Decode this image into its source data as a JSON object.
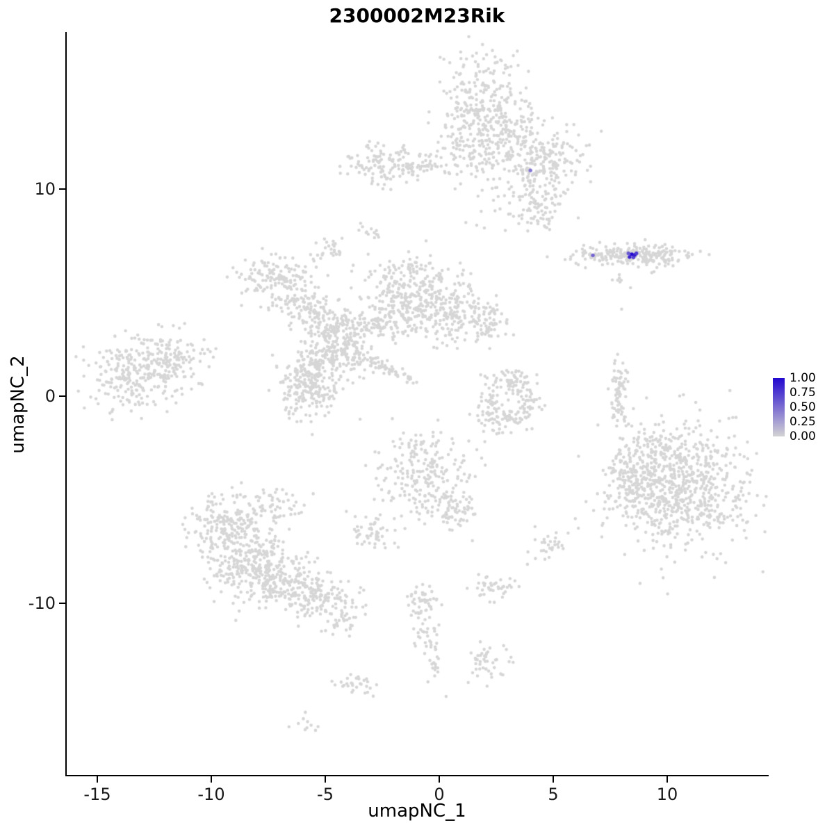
{
  "title": "2300002M23Rik",
  "axes": {
    "x_label": "umapNC_1",
    "y_label": "umapNC_2",
    "x_tick_labels": [
      "-15",
      "-10",
      "-5",
      "0",
      "5",
      "10"
    ],
    "y_tick_labels": [
      "10",
      "0",
      "-10"
    ]
  },
  "legend": {
    "labels": [
      "1.00",
      "0.75",
      "0.50",
      "0.25",
      "0.00"
    ],
    "values": [
      1.0,
      0.75,
      0.5,
      0.25,
      0.0
    ],
    "low_color": "#D3D3D3",
    "high_color": "#2308CF"
  },
  "chart_data": {
    "type": "scatter",
    "title": "2300002M23Rik",
    "xlabel": "umapNC_1",
    "ylabel": "umapNC_2",
    "xlim": [
      -16.4,
      14.4
    ],
    "ylim": [
      -18.3,
      17.5
    ],
    "x_ticks": [
      -15,
      -10,
      -5,
      0,
      5,
      10
    ],
    "y_ticks": [
      10,
      0,
      -10
    ],
    "grid": false,
    "legend_position": "right",
    "point_color": "#D6D6D6",
    "point_radius": 2.3,
    "seed": 42,
    "clusters": [
      {
        "name": "top-main",
        "cx": 1.9,
        "cy": 13.3,
        "sx": 1.1,
        "sy": 1.5,
        "n": 450
      },
      {
        "name": "top-right",
        "cx": 4.4,
        "cy": 11.3,
        "sx": 1.0,
        "sy": 0.9,
        "n": 220
      },
      {
        "name": "top-tail",
        "cx": 4.4,
        "cy": 9.3,
        "sx": 0.5,
        "sy": 0.8,
        "n": 70
      },
      {
        "name": "top-sparse-below",
        "cx": 3.0,
        "cy": 8.7,
        "sx": 0.7,
        "sy": 0.5,
        "n": 12
      },
      {
        "name": "topleft-blob",
        "cx": -2.2,
        "cy": 11.2,
        "sx": 0.9,
        "sy": 0.5,
        "n": 130
      },
      {
        "name": "topleft-bridge",
        "cx": -0.6,
        "cy": 11.0,
        "sx": 0.7,
        "sy": 0.15,
        "n": 25
      },
      {
        "name": "tiny-blob-a",
        "cx": -3.2,
        "cy": 8.0,
        "sx": 0.25,
        "sy": 0.2,
        "n": 12
      },
      {
        "name": "tiny-blob-b",
        "cx": -4.7,
        "cy": 7.1,
        "sx": 0.35,
        "sy": 0.25,
        "n": 25
      },
      {
        "name": "island-main",
        "cx": 8.3,
        "cy": 6.8,
        "sx": 1.2,
        "sy": 0.25,
        "n": 170
      },
      {
        "name": "island-right",
        "cx": 9.6,
        "cy": 6.7,
        "sx": 0.5,
        "sy": 0.3,
        "n": 55
      },
      {
        "name": "island-left",
        "cx": 6.8,
        "cy": 6.8,
        "sx": 0.3,
        "sy": 0.15,
        "n": 18
      },
      {
        "name": "island-below",
        "cx": 8.0,
        "cy": 5.6,
        "sx": 0.3,
        "sy": 0.3,
        "n": 6
      },
      {
        "name": "mid-left-a",
        "cx": -7.1,
        "cy": 5.7,
        "sx": 0.8,
        "sy": 0.6,
        "n": 140
      },
      {
        "name": "mid-left-b",
        "cx": -6.0,
        "cy": 4.4,
        "sx": 0.6,
        "sy": 0.5,
        "n": 100
      },
      {
        "name": "mid-left-c",
        "cx": -4.8,
        "cy": 3.4,
        "sx": 0.6,
        "sy": 0.5,
        "n": 100
      },
      {
        "name": "mid-center",
        "cx": -1.3,
        "cy": 5.0,
        "sx": 1.0,
        "sy": 0.9,
        "n": 300
      },
      {
        "name": "mid-right",
        "cx": 0.7,
        "cy": 3.9,
        "sx": 0.9,
        "sy": 0.7,
        "n": 180
      },
      {
        "name": "mid-right-edge",
        "cx": 2.2,
        "cy": 3.7,
        "sx": 0.4,
        "sy": 0.4,
        "n": 40
      },
      {
        "name": "mid-bridge",
        "cx": -2.8,
        "cy": 3.4,
        "sx": 0.8,
        "sy": 0.4,
        "n": 80
      },
      {
        "name": "mid-lower-a",
        "cx": -4.3,
        "cy": 2.2,
        "sx": 0.7,
        "sy": 0.6,
        "n": 150
      },
      {
        "name": "mid-lower-dense",
        "cx": -5.7,
        "cy": 0.7,
        "sx": 0.7,
        "sy": 0.8,
        "n": 260
      },
      {
        "name": "diag-streak",
        "cx": -2.3,
        "cy": 1.3,
        "sx": 0.9,
        "sy": 0.15,
        "rot": -24,
        "n": 60
      },
      {
        "name": "far-left-a",
        "cx": -13.5,
        "cy": 1.0,
        "sx": 1.0,
        "sy": 0.8,
        "n": 210
      },
      {
        "name": "far-left-b",
        "cx": -12.0,
        "cy": 1.7,
        "sx": 0.9,
        "sy": 0.7,
        "n": 150
      },
      {
        "name": "center-ring-top",
        "cx": 3.1,
        "cy": 0.8,
        "sx": 0.6,
        "sy": 0.3,
        "n": 60
      },
      {
        "name": "center-ring-right",
        "cx": 3.8,
        "cy": -0.3,
        "sx": 0.3,
        "sy": 0.5,
        "n": 50
      },
      {
        "name": "center-ring-bottom",
        "cx": 2.8,
        "cy": -1.2,
        "sx": 0.5,
        "sy": 0.3,
        "n": 55
      },
      {
        "name": "center-ring-left",
        "cx": 2.2,
        "cy": -0.3,
        "sx": 0.25,
        "sy": 0.4,
        "n": 30
      },
      {
        "name": "right-arc",
        "cx": 7.9,
        "cy": 0.1,
        "sx": 0.2,
        "sy": 1.0,
        "n": 70
      },
      {
        "name": "bottom-right-main",
        "cx": 10.6,
        "cy": -4.4,
        "sx": 1.5,
        "sy": 1.4,
        "n": 650
      },
      {
        "name": "bottom-right-halo",
        "cx": 10.4,
        "cy": -4.2,
        "sx": 2.1,
        "sy": 1.8,
        "n": 90
      },
      {
        "name": "bottom-right-arm",
        "cx": 8.3,
        "cy": -4.0,
        "sx": 0.5,
        "sy": 0.9,
        "n": 120
      },
      {
        "name": "bottom-right-top",
        "cx": 9.4,
        "cy": -2.4,
        "sx": 0.5,
        "sy": 0.4,
        "n": 50
      },
      {
        "name": "center-low",
        "cx": -0.6,
        "cy": -3.8,
        "sx": 1.0,
        "sy": 1.1,
        "n": 230
      },
      {
        "name": "center-low-tail",
        "cx": 0.7,
        "cy": -5.6,
        "sx": 0.4,
        "sy": 0.5,
        "n": 55
      },
      {
        "name": "small-blob-left",
        "cx": -2.9,
        "cy": -6.5,
        "sx": 0.5,
        "sy": 0.4,
        "n": 50
      },
      {
        "name": "bottom-left-a",
        "cx": -9.2,
        "cy": -6.4,
        "sx": 0.9,
        "sy": 0.8,
        "n": 200
      },
      {
        "name": "bottom-left-b",
        "cx": -8.3,
        "cy": -8.1,
        "sx": 1.0,
        "sy": 0.9,
        "n": 250
      },
      {
        "name": "bottom-left-c",
        "cx": -6.5,
        "cy": -9.1,
        "sx": 0.9,
        "sy": 0.7,
        "n": 180
      },
      {
        "name": "bottom-left-d",
        "cx": -4.9,
        "cy": -9.9,
        "sx": 0.7,
        "sy": 0.5,
        "n": 100
      },
      {
        "name": "bottom-left-top-sparse",
        "cx": -7.4,
        "cy": -5.4,
        "sx": 0.8,
        "sy": 0.5,
        "n": 60
      },
      {
        "name": "bottom-left-below",
        "cx": -4.3,
        "cy": -11.1,
        "sx": 0.4,
        "sy": 0.3,
        "n": 25
      },
      {
        "name": "chain-a",
        "cx": -0.7,
        "cy": -9.9,
        "sx": 0.4,
        "sy": 0.5,
        "n": 50
      },
      {
        "name": "chain-b",
        "cx": -0.4,
        "cy": -11.6,
        "sx": 0.3,
        "sy": 0.4,
        "n": 30
      },
      {
        "name": "chain-c",
        "cx": -0.2,
        "cy": -13.1,
        "sx": 0.2,
        "sy": 0.3,
        "n": 14
      },
      {
        "name": "chain-blob",
        "cx": 2.1,
        "cy": -12.8,
        "sx": 0.5,
        "sy": 0.4,
        "n": 45
      },
      {
        "name": "mid-small-blob",
        "cx": 2.4,
        "cy": -9.2,
        "sx": 0.4,
        "sy": 0.35,
        "n": 40
      },
      {
        "name": "right-small-blob",
        "cx": 4.8,
        "cy": -7.2,
        "sx": 0.4,
        "sy": 0.3,
        "n": 28
      },
      {
        "name": "bottom-blob-a",
        "cx": -3.6,
        "cy": -13.9,
        "sx": 0.45,
        "sy": 0.3,
        "n": 30
      },
      {
        "name": "bottom-blob-b",
        "cx": -5.9,
        "cy": -15.8,
        "sx": 0.4,
        "sy": 0.2,
        "n": 10
      }
    ],
    "extra_points": [
      [
        8.0,
        4.2
      ],
      [
        7.9,
        5.7
      ],
      [
        4.2,
        -6.3
      ],
      [
        9.0,
        -1.6
      ],
      [
        2.0,
        -2.2
      ],
      [
        -1.8,
        -7.3
      ],
      [
        0.3,
        -14.5
      ],
      [
        2.9,
        8.0
      ]
    ],
    "expressing_cells": [
      {
        "x": 4.0,
        "y": 10.9,
        "value": 0.45
      },
      {
        "x": 6.74,
        "y": 6.8,
        "value": 0.55
      },
      {
        "x": 8.3,
        "y": 6.9,
        "value": 0.6
      },
      {
        "x": 8.35,
        "y": 6.72,
        "value": 0.85
      },
      {
        "x": 8.45,
        "y": 6.85,
        "value": 1.0
      },
      {
        "x": 8.52,
        "y": 6.7,
        "value": 0.7
      },
      {
        "x": 8.58,
        "y": 6.82,
        "value": 0.9
      },
      {
        "x": 8.65,
        "y": 6.9,
        "value": 0.75
      }
    ]
  }
}
